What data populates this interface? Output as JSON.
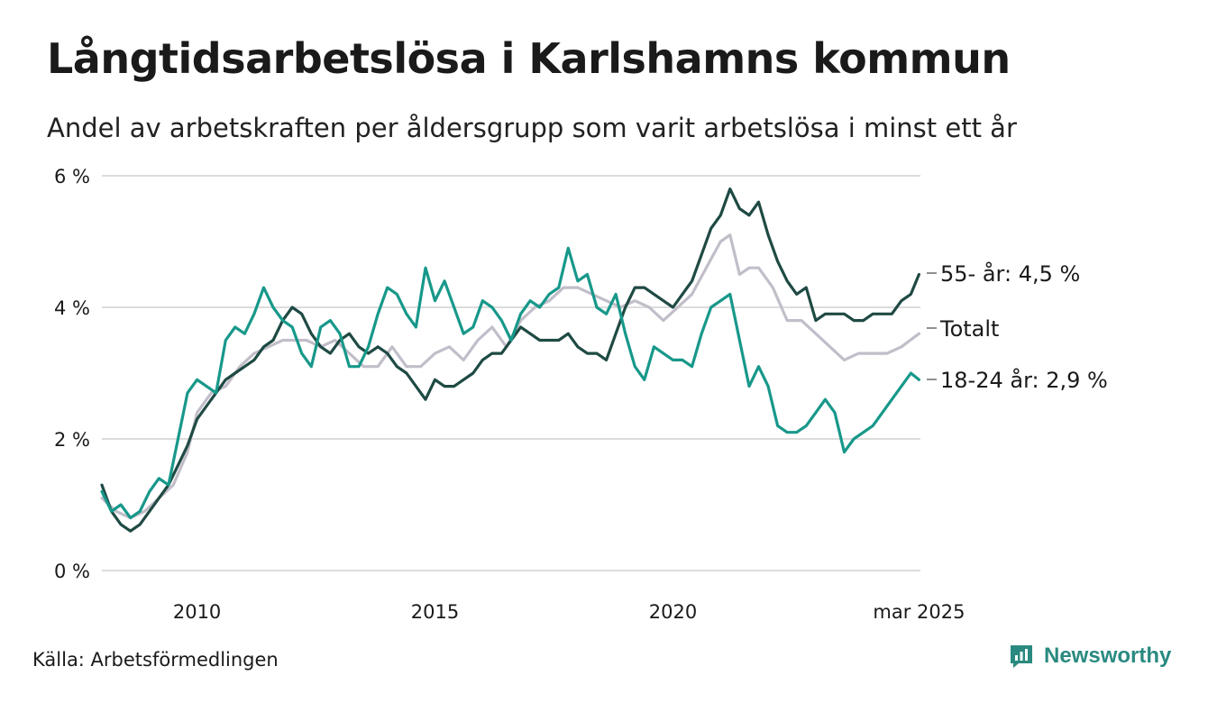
{
  "header": {
    "title": "Långtidsarbetslösa i Karlshamns kommun",
    "subtitle": "Andel av arbetskraften per åldersgrupp som varit arbetslösa i minst ett år"
  },
  "footer": {
    "source": "Källa: Arbetsförmedlingen",
    "brand": "Newsworthy"
  },
  "colors": {
    "series_55": "#1f4a44",
    "series_total": "#c2bec9",
    "series_18_24": "#17988a",
    "grid": "#dcdcdc",
    "brand": "#2a8a80"
  },
  "icons": {
    "brand_logo": "newsworthy-logo-icon"
  },
  "chart_data": {
    "type": "line",
    "title": "Långtidsarbetslösa i Karlshamns kommun",
    "subtitle": "Andel av arbetskraften per åldersgrupp som varit arbetslösa i minst ett år",
    "xlabel": "",
    "ylabel": "",
    "ylim": [
      0,
      6
    ],
    "yticks": [
      {
        "value": 0,
        "label": "0 %"
      },
      {
        "value": 2,
        "label": "2 %"
      },
      {
        "value": 4,
        "label": "4 %"
      },
      {
        "value": 6,
        "label": "6 %"
      }
    ],
    "xlim": [
      2008.0,
      2025.2
    ],
    "xticks": [
      {
        "value": 2010,
        "label": "2010"
      },
      {
        "value": 2015,
        "label": "2015"
      },
      {
        "value": 2020,
        "label": "2020"
      },
      {
        "value": 2025.17,
        "label": "mar 2025"
      }
    ],
    "grid": true,
    "legend": "end-of-line labels",
    "series": [
      {
        "key": "total",
        "end_label": "Totalt",
        "x": [
          2008.0,
          2008.3,
          2008.6,
          2008.9,
          2009.2,
          2009.5,
          2009.8,
          2010.0,
          2010.3,
          2010.6,
          2010.9,
          2011.2,
          2011.5,
          2011.8,
          2012.0,
          2012.3,
          2012.6,
          2012.9,
          2013.2,
          2013.5,
          2013.8,
          2014.1,
          2014.4,
          2014.7,
          2015.0,
          2015.3,
          2015.6,
          2015.9,
          2016.2,
          2016.5,
          2016.8,
          2017.1,
          2017.4,
          2017.7,
          2018.0,
          2018.3,
          2018.6,
          2018.9,
          2019.2,
          2019.5,
          2019.8,
          2020.1,
          2020.4,
          2020.7,
          2021.0,
          2021.2,
          2021.4,
          2021.6,
          2021.8,
          2022.1,
          2022.4,
          2022.7,
          2023.0,
          2023.3,
          2023.6,
          2023.9,
          2024.2,
          2024.5,
          2024.8,
          2025.17
        ],
        "values": [
          1.1,
          0.9,
          0.8,
          0.9,
          1.1,
          1.3,
          1.8,
          2.4,
          2.7,
          2.8,
          3.1,
          3.3,
          3.4,
          3.5,
          3.5,
          3.5,
          3.4,
          3.5,
          3.3,
          3.1,
          3.1,
          3.4,
          3.1,
          3.1,
          3.3,
          3.4,
          3.2,
          3.5,
          3.7,
          3.4,
          3.8,
          4.0,
          4.1,
          4.3,
          4.3,
          4.2,
          4.1,
          4.0,
          4.1,
          4.0,
          3.8,
          4.0,
          4.2,
          4.6,
          5.0,
          5.1,
          4.5,
          4.6,
          4.6,
          4.3,
          3.8,
          3.8,
          3.6,
          3.4,
          3.2,
          3.3,
          3.3,
          3.3,
          3.4,
          3.6
        ]
      },
      {
        "key": "55",
        "end_label": "55- år: 4,5 %",
        "x": [
          2008.0,
          2008.2,
          2008.4,
          2008.6,
          2008.8,
          2009.0,
          2009.2,
          2009.4,
          2009.6,
          2009.8,
          2010.0,
          2010.2,
          2010.4,
          2010.6,
          2010.8,
          2011.0,
          2011.2,
          2011.4,
          2011.6,
          2011.8,
          2012.0,
          2012.2,
          2012.4,
          2012.6,
          2012.8,
          2013.0,
          2013.2,
          2013.4,
          2013.6,
          2013.8,
          2014.0,
          2014.2,
          2014.4,
          2014.6,
          2014.8,
          2015.0,
          2015.2,
          2015.4,
          2015.6,
          2015.8,
          2016.0,
          2016.2,
          2016.4,
          2016.6,
          2016.8,
          2017.0,
          2017.2,
          2017.4,
          2017.6,
          2017.8,
          2018.0,
          2018.2,
          2018.4,
          2018.6,
          2018.8,
          2019.0,
          2019.2,
          2019.4,
          2019.6,
          2019.8,
          2020.0,
          2020.2,
          2020.4,
          2020.6,
          2020.8,
          2021.0,
          2021.2,
          2021.4,
          2021.6,
          2021.8,
          2022.0,
          2022.2,
          2022.4,
          2022.6,
          2022.8,
          2023.0,
          2023.2,
          2023.4,
          2023.6,
          2023.8,
          2024.0,
          2024.2,
          2024.4,
          2024.6,
          2024.8,
          2025.0,
          2025.17
        ],
        "values": [
          1.3,
          0.9,
          0.7,
          0.6,
          0.7,
          0.9,
          1.1,
          1.3,
          1.6,
          1.9,
          2.3,
          2.5,
          2.7,
          2.9,
          3.0,
          3.1,
          3.2,
          3.4,
          3.5,
          3.8,
          4.0,
          3.9,
          3.6,
          3.4,
          3.3,
          3.5,
          3.6,
          3.4,
          3.3,
          3.4,
          3.3,
          3.1,
          3.0,
          2.8,
          2.6,
          2.9,
          2.8,
          2.8,
          2.9,
          3.0,
          3.2,
          3.3,
          3.3,
          3.5,
          3.7,
          3.6,
          3.5,
          3.5,
          3.5,
          3.6,
          3.4,
          3.3,
          3.3,
          3.2,
          3.6,
          4.0,
          4.3,
          4.3,
          4.2,
          4.1,
          4.0,
          4.2,
          4.4,
          4.8,
          5.2,
          5.4,
          5.8,
          5.5,
          5.4,
          5.6,
          5.1,
          4.7,
          4.4,
          4.2,
          4.3,
          3.8,
          3.9,
          3.9,
          3.9,
          3.8,
          3.8,
          3.9,
          3.9,
          3.9,
          4.1,
          4.2,
          4.5
        ]
      },
      {
        "key": "18-24",
        "end_label": "18-24 år: 2,9 %",
        "x": [
          2008.0,
          2008.2,
          2008.4,
          2008.6,
          2008.8,
          2009.0,
          2009.2,
          2009.4,
          2009.6,
          2009.8,
          2010.0,
          2010.2,
          2010.4,
          2010.6,
          2010.8,
          2011.0,
          2011.2,
          2011.4,
          2011.6,
          2011.8,
          2012.0,
          2012.2,
          2012.4,
          2012.6,
          2012.8,
          2013.0,
          2013.2,
          2013.4,
          2013.6,
          2013.8,
          2014.0,
          2014.2,
          2014.4,
          2014.6,
          2014.8,
          2015.0,
          2015.2,
          2015.4,
          2015.6,
          2015.8,
          2016.0,
          2016.2,
          2016.4,
          2016.6,
          2016.8,
          2017.0,
          2017.2,
          2017.4,
          2017.6,
          2017.8,
          2018.0,
          2018.2,
          2018.4,
          2018.6,
          2018.8,
          2019.0,
          2019.2,
          2019.4,
          2019.6,
          2019.8,
          2020.0,
          2020.2,
          2020.4,
          2020.6,
          2020.8,
          2021.0,
          2021.2,
          2021.4,
          2021.6,
          2021.8,
          2022.0,
          2022.2,
          2022.4,
          2022.6,
          2022.8,
          2023.0,
          2023.2,
          2023.4,
          2023.6,
          2023.8,
          2024.0,
          2024.2,
          2024.4,
          2024.6,
          2024.8,
          2025.0,
          2025.17
        ],
        "values": [
          1.2,
          0.9,
          1.0,
          0.8,
          0.9,
          1.2,
          1.4,
          1.3,
          2.0,
          2.7,
          2.9,
          2.8,
          2.7,
          3.5,
          3.7,
          3.6,
          3.9,
          4.3,
          4.0,
          3.8,
          3.7,
          3.3,
          3.1,
          3.7,
          3.8,
          3.6,
          3.1,
          3.1,
          3.4,
          3.9,
          4.3,
          4.2,
          3.9,
          3.7,
          4.6,
          4.1,
          4.4,
          4.0,
          3.6,
          3.7,
          4.1,
          4.0,
          3.8,
          3.5,
          3.9,
          4.1,
          4.0,
          4.2,
          4.3,
          4.9,
          4.4,
          4.5,
          4.0,
          3.9,
          4.2,
          3.6,
          3.1,
          2.9,
          3.4,
          3.3,
          3.2,
          3.2,
          3.1,
          3.6,
          4.0,
          4.1,
          4.2,
          3.5,
          2.8,
          3.1,
          2.8,
          2.2,
          2.1,
          2.1,
          2.2,
          2.4,
          2.6,
          2.4,
          1.8,
          2.0,
          2.1,
          2.2,
          2.4,
          2.6,
          2.8,
          3.0,
          2.9
        ]
      }
    ]
  }
}
